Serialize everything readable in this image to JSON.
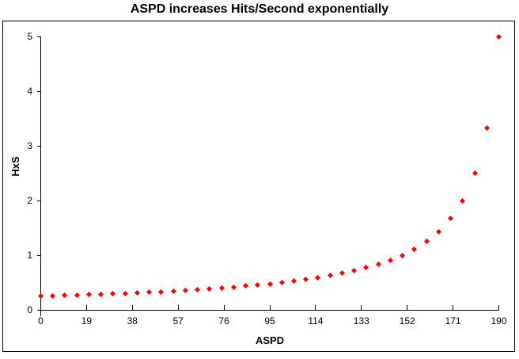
{
  "chart_data": {
    "type": "scatter",
    "title": "ASPD increases Hits/Second exponentially",
    "xlabel": "ASPD",
    "ylabel": "HxS",
    "xlim": [
      0,
      190
    ],
    "ylim": [
      0,
      5
    ],
    "x_ticks": [
      0,
      19,
      38,
      57,
      76,
      95,
      114,
      133,
      152,
      171,
      190
    ],
    "y_ticks": [
      0,
      1,
      2,
      3,
      4,
      5
    ],
    "grid": false,
    "legend": false,
    "marker": {
      "shape": "diamond",
      "color": "#FF0000",
      "size": 5
    },
    "x": [
      0,
      5,
      10,
      15,
      20,
      25,
      30,
      35,
      40,
      45,
      50,
      55,
      60,
      65,
      70,
      75,
      80,
      85,
      90,
      95,
      100,
      105,
      110,
      115,
      120,
      125,
      130,
      135,
      140,
      145,
      150,
      155,
      160,
      165,
      170,
      175,
      180,
      185,
      190
    ],
    "y": [
      0.25,
      0.256,
      0.263,
      0.27,
      0.278,
      0.286,
      0.294,
      0.303,
      0.313,
      0.323,
      0.333,
      0.345,
      0.357,
      0.37,
      0.385,
      0.4,
      0.417,
      0.435,
      0.455,
      0.476,
      0.5,
      0.526,
      0.556,
      0.588,
      0.625,
      0.667,
      0.714,
      0.769,
      0.833,
      0.909,
      1.0,
      1.111,
      1.25,
      1.429,
      1.667,
      2.0,
      2.5,
      3.333,
      5.0
    ]
  },
  "colors": {
    "marker": "#FF0000",
    "axis": "#000000",
    "background": "#FFFFFF",
    "text": "#000000"
  }
}
